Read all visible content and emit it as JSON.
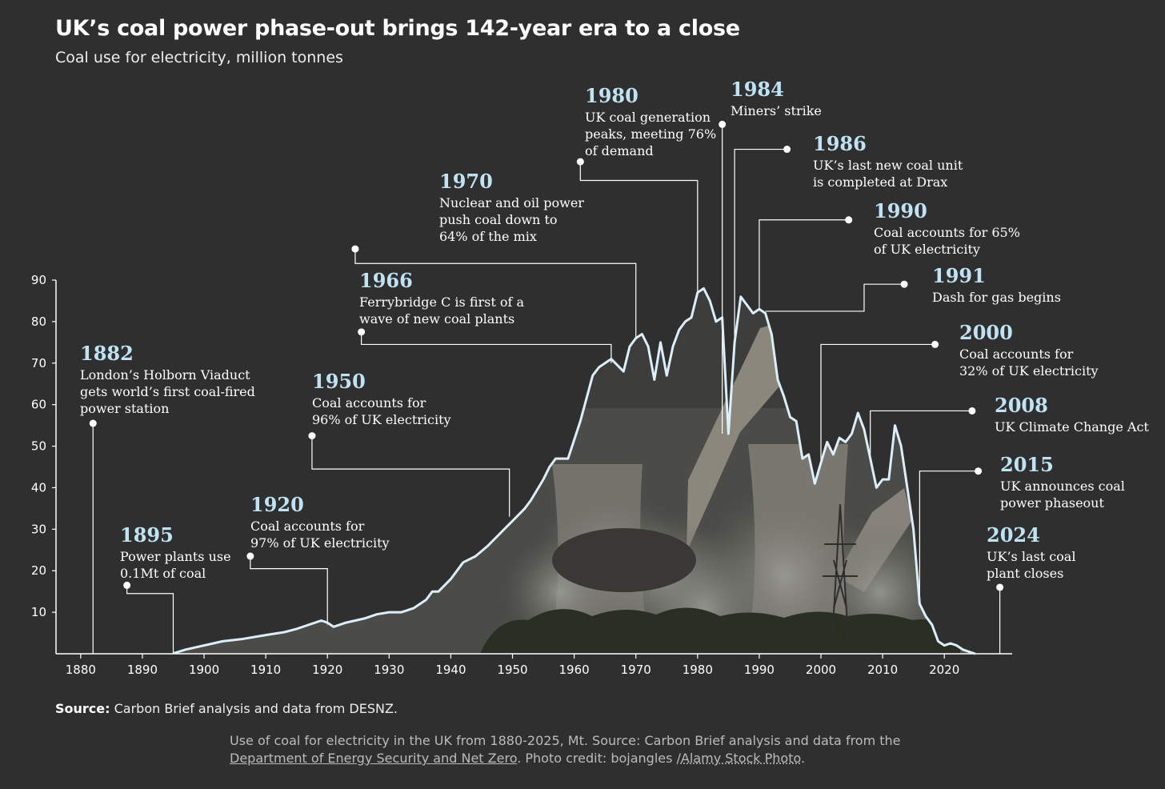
{
  "title": "UK’s coal power phase-out brings 142-year era to a close",
  "subtitle": "Coal use for electricity, million tonnes",
  "source_label": "Source:",
  "source_text": "Carbon Brief analysis and data from DESNZ.",
  "caption": {
    "line1": "Use of coal for electricity in the UK from 1880-2025, Mt. Source: Carbon Brief analysis and data from the",
    "link1": "Department of Energy Security and Net Zero",
    "mid": ". Photo credit: bojangles /",
    "link2": "Alamy Stock Photo",
    "end": "."
  },
  "colors": {
    "background": "#2f2f2f",
    "line": "#dbeefa",
    "year": "#bfe3f3",
    "leader": "#ffffff"
  },
  "chart_data": {
    "type": "area",
    "title": "UK’s coal power phase-out brings 142-year era to a close",
    "ylabel": "Coal use for electricity, million tonnes",
    "xlim": [
      1876,
      2031
    ],
    "ylim": [
      0,
      90
    ],
    "x_ticks": [
      1880,
      1890,
      1900,
      1910,
      1920,
      1930,
      1940,
      1950,
      1960,
      1970,
      1980,
      1990,
      2000,
      2010,
      2020
    ],
    "y_ticks": [
      10,
      20,
      30,
      40,
      50,
      60,
      70,
      80,
      90
    ],
    "series": [
      {
        "name": "Coal use for electricity (Mt)",
        "points": [
          [
            1895,
            0.1
          ],
          [
            1897,
            1
          ],
          [
            1900,
            2
          ],
          [
            1903,
            3
          ],
          [
            1906,
            3.5
          ],
          [
            1910,
            4.5
          ],
          [
            1913,
            5.2
          ],
          [
            1915,
            6
          ],
          [
            1917,
            7
          ],
          [
            1919,
            8
          ],
          [
            1920,
            7.5
          ],
          [
            1921,
            6.5
          ],
          [
            1923,
            7.5
          ],
          [
            1926,
            8.5
          ],
          [
            1928,
            9.5
          ],
          [
            1930,
            10
          ],
          [
            1932,
            10
          ],
          [
            1934,
            11
          ],
          [
            1936,
            13
          ],
          [
            1937,
            15
          ],
          [
            1938,
            15
          ],
          [
            1940,
            18
          ],
          [
            1942,
            22
          ],
          [
            1944,
            23.5
          ],
          [
            1946,
            26
          ],
          [
            1948,
            29
          ],
          [
            1950,
            32
          ],
          [
            1952,
            35
          ],
          [
            1953,
            37
          ],
          [
            1955,
            42
          ],
          [
            1956,
            45
          ],
          [
            1957,
            47
          ],
          [
            1959,
            47
          ],
          [
            1961,
            56
          ],
          [
            1963,
            67
          ],
          [
            1964,
            69
          ],
          [
            1965,
            70
          ],
          [
            1966,
            71
          ],
          [
            1968,
            68
          ],
          [
            1969,
            74
          ],
          [
            1970,
            76
          ],
          [
            1971,
            77
          ],
          [
            1972,
            74
          ],
          [
            1973,
            66
          ],
          [
            1974,
            75
          ],
          [
            1975,
            67
          ],
          [
            1976,
            74
          ],
          [
            1977,
            78
          ],
          [
            1978,
            80
          ],
          [
            1979,
            81
          ],
          [
            1980,
            87
          ],
          [
            1981,
            88
          ],
          [
            1982,
            85
          ],
          [
            1983,
            80
          ],
          [
            1984,
            81
          ],
          [
            1985,
            53
          ],
          [
            1986,
            75
          ],
          [
            1987,
            86
          ],
          [
            1988,
            84
          ],
          [
            1989,
            82
          ],
          [
            1990,
            83
          ],
          [
            1991,
            82
          ],
          [
            1992,
            77
          ],
          [
            1993,
            66
          ],
          [
            1994,
            62
          ],
          [
            1995,
            57
          ],
          [
            1996,
            56
          ],
          [
            1997,
            47
          ],
          [
            1998,
            48
          ],
          [
            1999,
            41
          ],
          [
            2000,
            46
          ],
          [
            2001,
            51
          ],
          [
            2002,
            48
          ],
          [
            2003,
            52
          ],
          [
            2004,
            51
          ],
          [
            2005,
            53
          ],
          [
            2006,
            58
          ],
          [
            2007,
            54
          ],
          [
            2008,
            47
          ],
          [
            2009,
            40
          ],
          [
            2010,
            42
          ],
          [
            2011,
            42
          ],
          [
            2012,
            55
          ],
          [
            2013,
            50
          ],
          [
            2014,
            40
          ],
          [
            2015,
            30
          ],
          [
            2016,
            12
          ],
          [
            2017,
            9
          ],
          [
            2018,
            7
          ],
          [
            2019,
            3
          ],
          [
            2020,
            2
          ],
          [
            2021,
            2.5
          ],
          [
            2022,
            2
          ],
          [
            2023,
            1
          ],
          [
            2024,
            0.5
          ],
          [
            2025,
            0
          ]
        ]
      }
    ],
    "annotations": [
      {
        "year": "1882",
        "lines": [
          "London’s Holborn Viaduct",
          "gets world’s first coal-fired",
          "power station"
        ]
      },
      {
        "year": "1895",
        "lines": [
          "Power plants use",
          "0.1Mt of coal"
        ]
      },
      {
        "year": "1920",
        "lines": [
          "Coal accounts for",
          "97% of UK electricity"
        ]
      },
      {
        "year": "1950",
        "lines": [
          "Coal accounts for",
          "96% of UK electricity"
        ]
      },
      {
        "year": "1966",
        "lines": [
          "Ferrybridge C is first of a",
          "wave of new coal plants"
        ]
      },
      {
        "year": "1970",
        "lines": [
          "Nuclear and oil power",
          "push coal down to",
          "64% of the mix"
        ]
      },
      {
        "year": "1980",
        "lines": [
          "UK coal generation",
          "peaks, meeting 76%",
          "of demand"
        ]
      },
      {
        "year": "1984",
        "lines": [
          "Miners’ strike"
        ]
      },
      {
        "year": "1986",
        "lines": [
          "UK’s last new coal unit",
          "is completed at Drax"
        ]
      },
      {
        "year": "1990",
        "lines": [
          "Coal accounts for 65%",
          "of UK electricity"
        ]
      },
      {
        "year": "1991",
        "lines": [
          "Dash for gas begins"
        ]
      },
      {
        "year": "2000",
        "lines": [
          "Coal accounts for",
          "32% of UK electricity"
        ]
      },
      {
        "year": "2008",
        "lines": [
          "UK Climate Change Act"
        ]
      },
      {
        "year": "2015",
        "lines": [
          "UK announces coal",
          "power phaseout"
        ]
      },
      {
        "year": "2024",
        "lines": [
          "UK’s last coal",
          "plant closes"
        ]
      }
    ]
  }
}
